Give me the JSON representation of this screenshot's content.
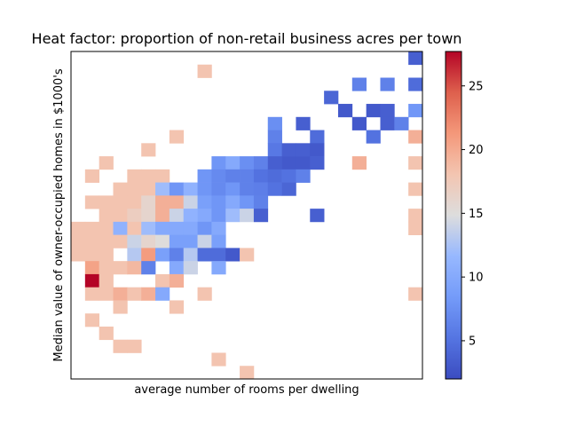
{
  "chart_data": {
    "type": "heatmap",
    "title": "Heat factor: proportion of non-retail business acres per town",
    "xlabel": "average number of rooms per dwelling",
    "ylabel": "Median value of owner-occupied homes in $1000's",
    "colormap": "coolwarm",
    "vmin": 2,
    "vmax": 27.7,
    "colorbar_ticks": [
      5,
      10,
      15,
      20,
      25
    ],
    "x_bins": 25,
    "y_bins": 25,
    "cells": [
      [
        24,
        0,
        3.5
      ],
      [
        9,
        1,
        18.1
      ],
      [
        20,
        2,
        6.2
      ],
      [
        22,
        2,
        6.2
      ],
      [
        24,
        2,
        4.5
      ],
      [
        18,
        3,
        4.0
      ],
      [
        19,
        4,
        3.0
      ],
      [
        21,
        4,
        3.0
      ],
      [
        22,
        4,
        3.5
      ],
      [
        24,
        4,
        8.1
      ],
      [
        14,
        5,
        7.4
      ],
      [
        16,
        5,
        3.5
      ],
      [
        20,
        5,
        3.0
      ],
      [
        22,
        5,
        3.5
      ],
      [
        23,
        5,
        6.2
      ],
      [
        7,
        6,
        18.1
      ],
      [
        14,
        6,
        6.2
      ],
      [
        17,
        6,
        4.5
      ],
      [
        21,
        6,
        5.0
      ],
      [
        24,
        6,
        19.6
      ],
      [
        5,
        7,
        18.1
      ],
      [
        14,
        7,
        5.5
      ],
      [
        15,
        7,
        3.5
      ],
      [
        16,
        7,
        3.5
      ],
      [
        17,
        7,
        3.0
      ],
      [
        2,
        8,
        18.1
      ],
      [
        10,
        8,
        8.0
      ],
      [
        11,
        8,
        10.0
      ],
      [
        12,
        8,
        7.4
      ],
      [
        13,
        8,
        6.2
      ],
      [
        14,
        8,
        3.5
      ],
      [
        15,
        8,
        3.0
      ],
      [
        16,
        8,
        3.0
      ],
      [
        17,
        8,
        3.5
      ],
      [
        20,
        8,
        19.6
      ],
      [
        24,
        8,
        18.1
      ],
      [
        1,
        9,
        18.1
      ],
      [
        4,
        9,
        18.1
      ],
      [
        5,
        9,
        18.1
      ],
      [
        6,
        9,
        18.1
      ],
      [
        9,
        9,
        8.0
      ],
      [
        10,
        9,
        7.0
      ],
      [
        11,
        9,
        6.2
      ],
      [
        12,
        9,
        6.2
      ],
      [
        13,
        9,
        5.0
      ],
      [
        14,
        9,
        4.5
      ],
      [
        15,
        9,
        5.0
      ],
      [
        16,
        9,
        6.2
      ],
      [
        3,
        10,
        18.1
      ],
      [
        4,
        10,
        18.1
      ],
      [
        5,
        10,
        18.1
      ],
      [
        6,
        10,
        12.0
      ],
      [
        7,
        10,
        8.0
      ],
      [
        8,
        10,
        11.0
      ],
      [
        9,
        10,
        8.0
      ],
      [
        10,
        10,
        7.0
      ],
      [
        11,
        10,
        8.0
      ],
      [
        12,
        10,
        6.2
      ],
      [
        13,
        10,
        6.0
      ],
      [
        14,
        10,
        5.0
      ],
      [
        15,
        10,
        4.0
      ],
      [
        24,
        10,
        18.1
      ],
      [
        1,
        11,
        18.1
      ],
      [
        2,
        11,
        18.1
      ],
      [
        3,
        11,
        18.1
      ],
      [
        4,
        11,
        18.1
      ],
      [
        5,
        11,
        16.0
      ],
      [
        6,
        11,
        19.6
      ],
      [
        7,
        11,
        19.6
      ],
      [
        8,
        11,
        14.0
      ],
      [
        9,
        11,
        9.0
      ],
      [
        10,
        11,
        8.0
      ],
      [
        11,
        11,
        10.0
      ],
      [
        12,
        11,
        8.0
      ],
      [
        13,
        11,
        6.2
      ],
      [
        2,
        12,
        18.1
      ],
      [
        3,
        12,
        18.1
      ],
      [
        4,
        12,
        17.0
      ],
      [
        5,
        12,
        16.0
      ],
      [
        6,
        12,
        19.6
      ],
      [
        7,
        12,
        14.0
      ],
      [
        8,
        12,
        11.0
      ],
      [
        9,
        12,
        10.0
      ],
      [
        10,
        12,
        8.0
      ],
      [
        11,
        12,
        12.0
      ],
      [
        12,
        12,
        14.0
      ],
      [
        13,
        12,
        3.5
      ],
      [
        17,
        12,
        3.5
      ],
      [
        24,
        12,
        18.1
      ],
      [
        0,
        13,
        18.1
      ],
      [
        1,
        13,
        18.1
      ],
      [
        2,
        13,
        18.1
      ],
      [
        3,
        13,
        11.0
      ],
      [
        4,
        13,
        18.1
      ],
      [
        5,
        13,
        12.0
      ],
      [
        6,
        13,
        10.0
      ],
      [
        7,
        13,
        10.0
      ],
      [
        8,
        13,
        10.0
      ],
      [
        9,
        13,
        8.0
      ],
      [
        10,
        13,
        10.0
      ],
      [
        24,
        13,
        18.1
      ],
      [
        0,
        14,
        18.1
      ],
      [
        1,
        14,
        18.1
      ],
      [
        2,
        14,
        18.1
      ],
      [
        3,
        14,
        18.1
      ],
      [
        4,
        14,
        14.0
      ],
      [
        5,
        14,
        16.0
      ],
      [
        6,
        14,
        15.0
      ],
      [
        7,
        14,
        9.0
      ],
      [
        8,
        14,
        9.0
      ],
      [
        9,
        14,
        14.0
      ],
      [
        10,
        14,
        9.0
      ],
      [
        0,
        15,
        18.1
      ],
      [
        1,
        15,
        18.1
      ],
      [
        2,
        15,
        18.1
      ],
      [
        4,
        15,
        13.0
      ],
      [
        5,
        15,
        21.0
      ],
      [
        6,
        15,
        9.0
      ],
      [
        7,
        15,
        6.2
      ],
      [
        8,
        15,
        13.0
      ],
      [
        9,
        15,
        4.5
      ],
      [
        10,
        15,
        4.5
      ],
      [
        11,
        15,
        3.0
      ],
      [
        12,
        15,
        18.1
      ],
      [
        1,
        16,
        20.5
      ],
      [
        2,
        16,
        18.1
      ],
      [
        3,
        16,
        18.1
      ],
      [
        4,
        16,
        19.0
      ],
      [
        5,
        16,
        6.2
      ],
      [
        7,
        16,
        10.0
      ],
      [
        8,
        16,
        14.0
      ],
      [
        10,
        16,
        10.0
      ],
      [
        1,
        17,
        27.7
      ],
      [
        2,
        17,
        18.1
      ],
      [
        6,
        17,
        18.1
      ],
      [
        7,
        17,
        19.6
      ],
      [
        1,
        18,
        18.1
      ],
      [
        2,
        18,
        18.1
      ],
      [
        3,
        18,
        19.6
      ],
      [
        4,
        18,
        18.1
      ],
      [
        5,
        18,
        19.6
      ],
      [
        6,
        18,
        10.0
      ],
      [
        9,
        18,
        18.1
      ],
      [
        24,
        18,
        18.1
      ],
      [
        3,
        19,
        18.1
      ],
      [
        7,
        19,
        18.1
      ],
      [
        1,
        20,
        18.1
      ],
      [
        2,
        21,
        18.1
      ],
      [
        3,
        22,
        18.1
      ],
      [
        4,
        22,
        18.1
      ],
      [
        10,
        23,
        18.1
      ],
      [
        12,
        24,
        18.1
      ]
    ]
  }
}
